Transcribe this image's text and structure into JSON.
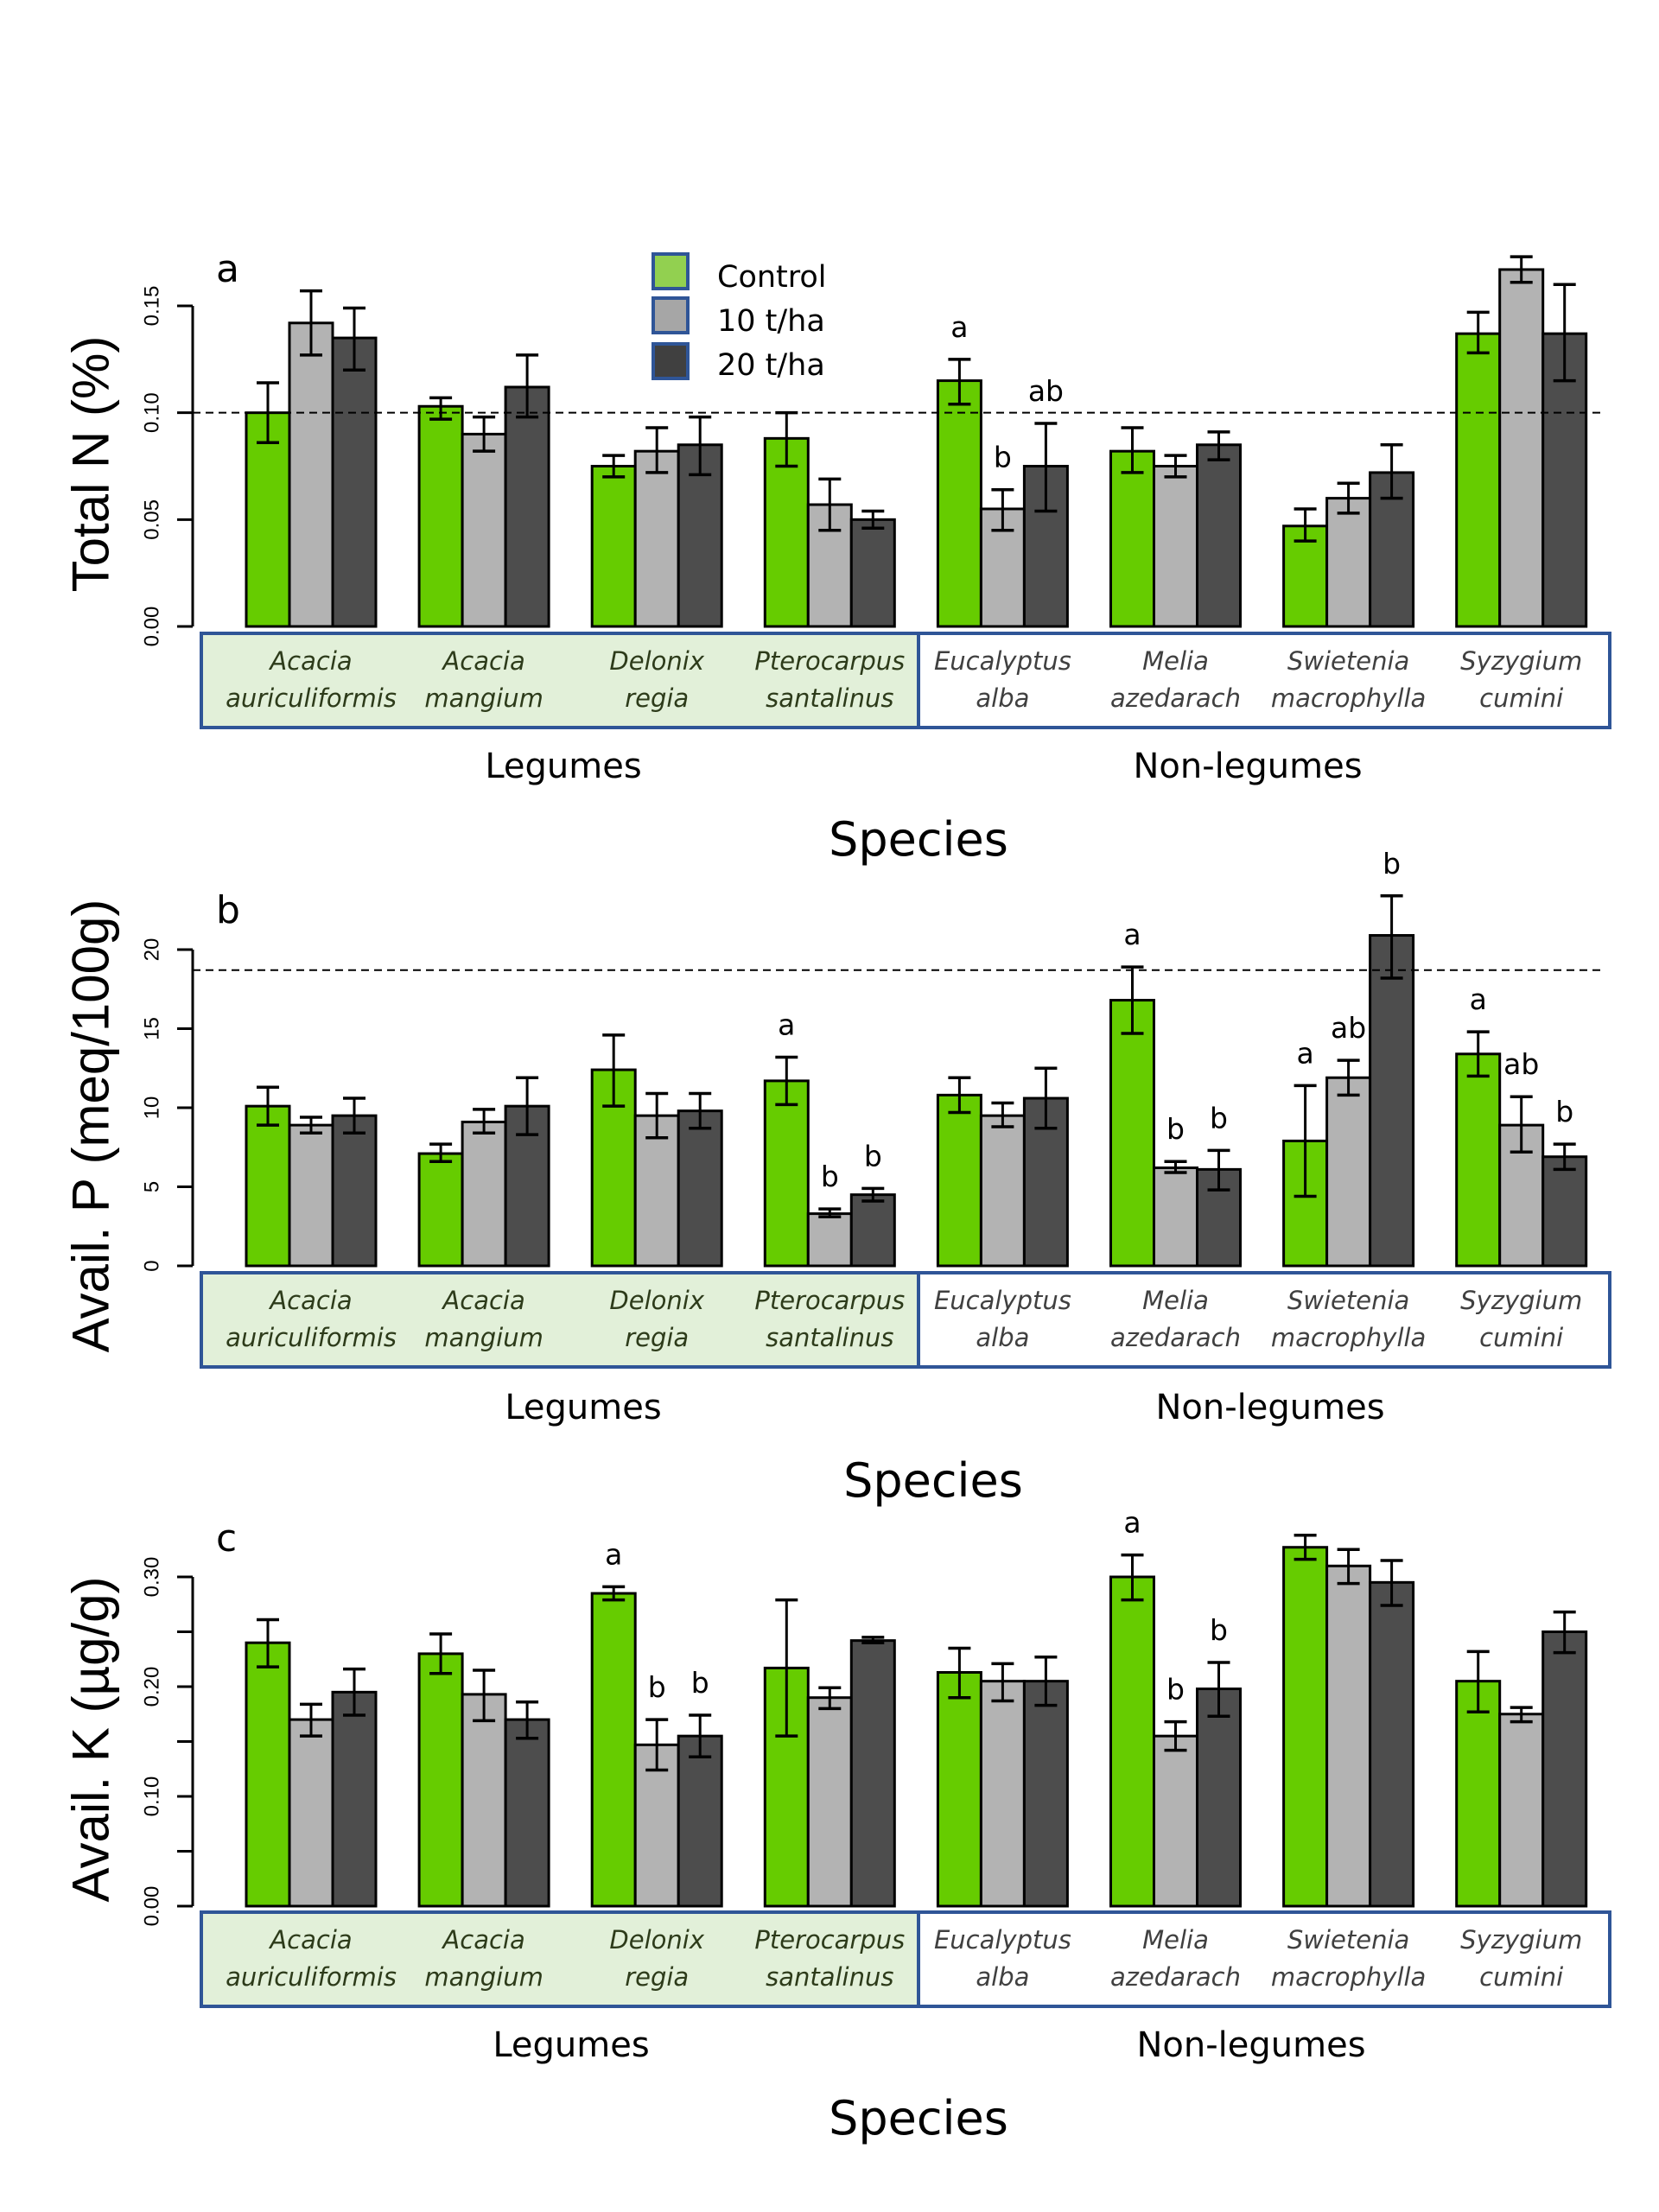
{
  "legend": {
    "items": [
      {
        "label": "Control",
        "color": "#92d050"
      },
      {
        "label": "10 t/ha",
        "color": "#a6a6a6"
      },
      {
        "label": "20 t/ha",
        "color": "#404040"
      }
    ],
    "border_color": "#2f5597",
    "placement": "top-center of panel a"
  },
  "colors": {
    "control": "#66cc00",
    "t10": "#b3b3b3",
    "t20": "#4d4d4d",
    "legume_box_fill": "#e2f0d9",
    "box_border": "#2f5597",
    "legume_text": "#2d3b1a",
    "nonlegume_text": "#404040"
  },
  "groups": {
    "legumes_label": "Legumes",
    "nonlegumes_label": "Non-legumes",
    "xlabel": "Species"
  },
  "chart_data": [
    {
      "type": "bar",
      "panel": "a",
      "title": "",
      "panel_label": "a",
      "xlabel": "Species",
      "ylabel": "Total N (%)",
      "ylim": [
        0,
        0.15
      ],
      "yticks": [
        0.0,
        0.05,
        0.1,
        0.15
      ],
      "ytick_labels": [
        "0.00",
        "0.05",
        "0.10",
        "0.15"
      ],
      "yminor_ticks": [],
      "reference_line": 0.1,
      "categories": [
        {
          "line1": "Acacia",
          "line2": "auriculiformis",
          "group": "Legumes"
        },
        {
          "line1": "Acacia",
          "line2": "mangium",
          "group": "Legumes"
        },
        {
          "line1": "Delonix",
          "line2": "regia",
          "group": "Legumes"
        },
        {
          "line1": "Pterocarpus",
          "line2": "santalinus",
          "group": "Legumes"
        },
        {
          "line1": "Eucalyptus",
          "line2": "alba",
          "group": "Non-legumes"
        },
        {
          "line1": "Melia",
          "line2": "azedarach",
          "group": "Non-legumes"
        },
        {
          "line1": "Swietenia",
          "line2": "macrophylla",
          "group": "Non-legumes"
        },
        {
          "line1": "Syzygium",
          "line2": "cumini",
          "group": "Non-legumes"
        }
      ],
      "series": [
        {
          "name": "Control",
          "values": [
            0.1,
            0.103,
            0.075,
            0.088,
            0.115,
            0.082,
            0.047,
            0.137
          ],
          "err_low": [
            0.086,
            0.097,
            0.07,
            0.075,
            0.104,
            0.072,
            0.04,
            0.128
          ],
          "err_high": [
            0.114,
            0.107,
            0.08,
            0.1,
            0.125,
            0.093,
            0.055,
            0.147
          ]
        },
        {
          "name": "10 t/ha",
          "values": [
            0.142,
            0.09,
            0.082,
            0.057,
            0.055,
            0.075,
            0.06,
            0.167
          ],
          "err_low": [
            0.127,
            0.082,
            0.072,
            0.045,
            0.045,
            0.07,
            0.053,
            0.161
          ],
          "err_high": [
            0.157,
            0.098,
            0.093,
            0.069,
            0.064,
            0.08,
            0.067,
            0.173
          ]
        },
        {
          "name": "20 t/ha",
          "values": [
            0.135,
            0.112,
            0.085,
            0.05,
            0.075,
            0.085,
            0.072,
            0.137
          ],
          "err_low": [
            0.12,
            0.098,
            0.071,
            0.046,
            0.054,
            0.078,
            0.06,
            0.115
          ],
          "err_high": [
            0.149,
            0.127,
            0.098,
            0.054,
            0.095,
            0.091,
            0.085,
            0.16
          ]
        }
      ],
      "sig_letters": [
        {
          "category": 4,
          "series": 0,
          "text": "a"
        },
        {
          "category": 4,
          "series": 1,
          "text": "b"
        },
        {
          "category": 4,
          "series": 2,
          "text": "ab"
        }
      ]
    },
    {
      "type": "bar",
      "panel": "b",
      "title": "",
      "panel_label": "b",
      "xlabel": "Species",
      "ylabel": "Avail. P (meq/100g)",
      "ylim": [
        0,
        20
      ],
      "yticks": [
        0,
        5,
        10,
        15,
        20
      ],
      "ytick_labels": [
        "0",
        "5",
        "10",
        "15",
        "20"
      ],
      "yminor_ticks": [],
      "reference_line": 18.7,
      "categories": [
        {
          "line1": "Acacia",
          "line2": "auriculiformis",
          "group": "Legumes"
        },
        {
          "line1": "Acacia",
          "line2": "mangium",
          "group": "Legumes"
        },
        {
          "line1": "Delonix",
          "line2": "regia",
          "group": "Legumes"
        },
        {
          "line1": "Pterocarpus",
          "line2": "santalinus",
          "group": "Legumes"
        },
        {
          "line1": "Eucalyptus",
          "line2": "alba",
          "group": "Non-legumes"
        },
        {
          "line1": "Melia",
          "line2": "azedarach",
          "group": "Non-legumes"
        },
        {
          "line1": "Swietenia",
          "line2": "macrophylla",
          "group": "Non-legumes"
        },
        {
          "line1": "Syzygium",
          "line2": "cumini",
          "group": "Non-legumes"
        }
      ],
      "series": [
        {
          "name": "Control",
          "values": [
            10.1,
            7.1,
            12.4,
            11.7,
            10.8,
            16.8,
            7.9,
            13.4
          ],
          "err_low": [
            8.9,
            6.6,
            10.1,
            10.2,
            9.7,
            14.7,
            4.4,
            12.0
          ],
          "err_high": [
            11.3,
            7.7,
            14.6,
            13.2,
            11.9,
            18.9,
            11.4,
            14.8
          ]
        },
        {
          "name": "10 t/ha",
          "values": [
            8.9,
            9.1,
            9.5,
            3.3,
            9.5,
            6.2,
            11.9,
            8.9
          ],
          "err_low": [
            8.4,
            8.4,
            8.1,
            3.1,
            8.8,
            5.9,
            10.8,
            7.2
          ],
          "err_high": [
            9.4,
            9.9,
            10.9,
            3.6,
            10.3,
            6.6,
            13.0,
            10.7
          ]
        },
        {
          "name": "20 t/ha",
          "values": [
            9.5,
            10.1,
            9.8,
            4.5,
            10.6,
            6.1,
            20.9,
            6.9
          ],
          "err_low": [
            8.4,
            8.3,
            8.7,
            4.1,
            8.7,
            4.8,
            18.2,
            6.1
          ],
          "err_high": [
            10.6,
            11.9,
            10.9,
            4.9,
            12.5,
            7.3,
            23.4,
            7.7
          ]
        }
      ],
      "sig_letters": [
        {
          "category": 3,
          "series": 0,
          "text": "a"
        },
        {
          "category": 3,
          "series": 1,
          "text": "b"
        },
        {
          "category": 3,
          "series": 2,
          "text": "b"
        },
        {
          "category": 5,
          "series": 0,
          "text": "a"
        },
        {
          "category": 5,
          "series": 1,
          "text": "b"
        },
        {
          "category": 5,
          "series": 2,
          "text": "b"
        },
        {
          "category": 6,
          "series": 0,
          "text": "a"
        },
        {
          "category": 6,
          "series": 1,
          "text": "ab"
        },
        {
          "category": 6,
          "series": 2,
          "text": "b"
        },
        {
          "category": 7,
          "series": 0,
          "text": "a"
        },
        {
          "category": 7,
          "series": 1,
          "text": "ab"
        },
        {
          "category": 7,
          "series": 2,
          "text": "b"
        }
      ]
    },
    {
      "type": "bar",
      "panel": "c",
      "title": "",
      "panel_label": "c",
      "xlabel": "Species",
      "ylabel": "Avail. K (µg/g)",
      "ylim": [
        0,
        0.3
      ],
      "yticks": [
        0.0,
        0.1,
        0.2,
        0.3
      ],
      "ytick_labels": [
        "0.00",
        "0.10",
        "0.20",
        "0.30"
      ],
      "yminor_ticks": [
        0.05,
        0.15,
        0.25
      ],
      "reference_line": null,
      "categories": [
        {
          "line1": "Acacia",
          "line2": "auriculiformis",
          "group": "Legumes"
        },
        {
          "line1": "Acacia",
          "line2": "mangium",
          "group": "Legumes"
        },
        {
          "line1": "Delonix",
          "line2": "regia",
          "group": "Legumes"
        },
        {
          "line1": "Pterocarpus",
          "line2": "santalinus",
          "group": "Legumes"
        },
        {
          "line1": "Eucalyptus",
          "line2": "alba",
          "group": "Non-legumes"
        },
        {
          "line1": "Melia",
          "line2": "azedarach",
          "group": "Non-legumes"
        },
        {
          "line1": "Swietenia",
          "line2": "macrophylla",
          "group": "Non-legumes"
        },
        {
          "line1": "Syzygium",
          "line2": "cumini",
          "group": "Non-legumes"
        }
      ],
      "series": [
        {
          "name": "Control",
          "values": [
            0.24,
            0.23,
            0.285,
            0.217,
            0.213,
            0.3,
            0.327,
            0.205
          ],
          "err_low": [
            0.218,
            0.212,
            0.279,
            0.155,
            0.19,
            0.279,
            0.316,
            0.177
          ],
          "err_high": [
            0.261,
            0.248,
            0.291,
            0.279,
            0.235,
            0.32,
            0.338,
            0.232
          ]
        },
        {
          "name": "10 t/ha",
          "values": [
            0.17,
            0.193,
            0.147,
            0.19,
            0.205,
            0.155,
            0.31,
            0.175
          ],
          "err_low": [
            0.155,
            0.169,
            0.124,
            0.18,
            0.187,
            0.142,
            0.294,
            0.168
          ],
          "err_high": [
            0.184,
            0.215,
            0.17,
            0.199,
            0.221,
            0.168,
            0.325,
            0.181
          ]
        },
        {
          "name": "20 t/ha",
          "values": [
            0.195,
            0.17,
            0.155,
            0.242,
            0.205,
            0.198,
            0.295,
            0.25
          ],
          "err_low": [
            0.174,
            0.153,
            0.136,
            0.24,
            0.183,
            0.173,
            0.274,
            0.231
          ],
          "err_high": [
            0.216,
            0.186,
            0.174,
            0.245,
            0.227,
            0.222,
            0.315,
            0.268
          ]
        }
      ],
      "sig_letters": [
        {
          "category": 2,
          "series": 0,
          "text": "a"
        },
        {
          "category": 2,
          "series": 1,
          "text": "b"
        },
        {
          "category": 2,
          "series": 2,
          "text": "b"
        },
        {
          "category": 5,
          "series": 0,
          "text": "a"
        },
        {
          "category": 5,
          "series": 1,
          "text": "b"
        },
        {
          "category": 5,
          "series": 2,
          "text": "b"
        }
      ]
    }
  ]
}
